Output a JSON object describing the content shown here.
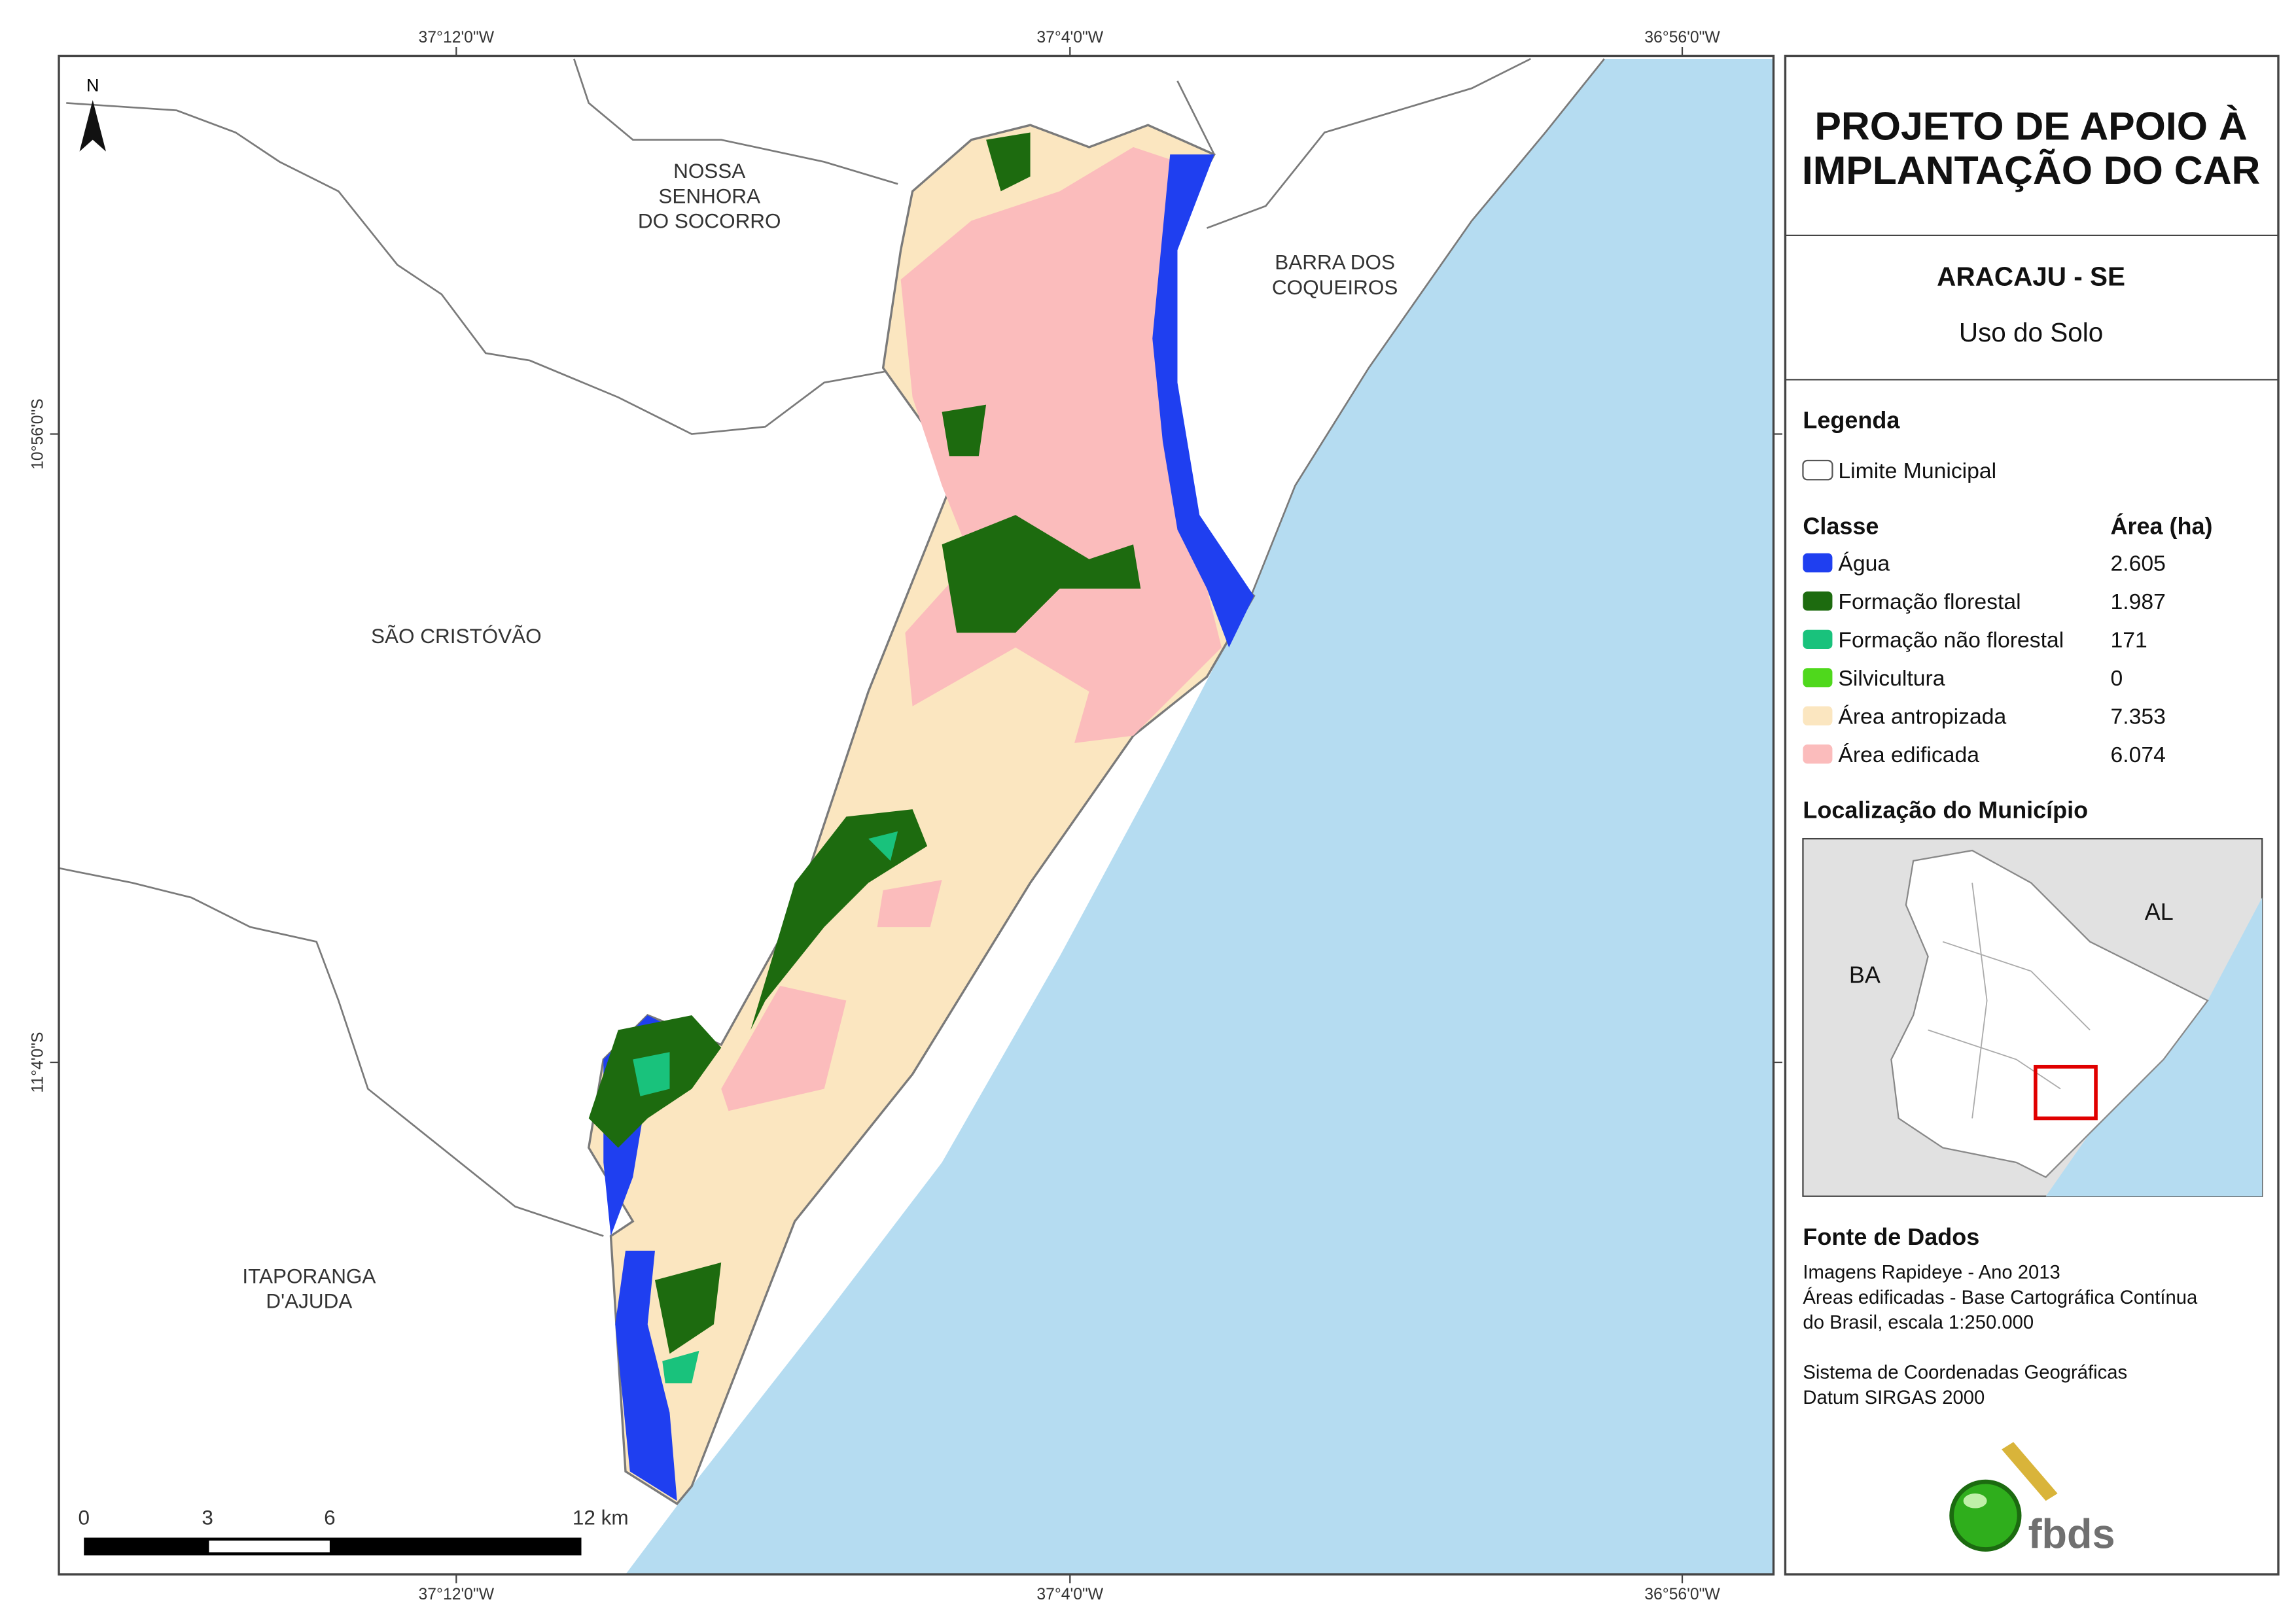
{
  "map": {
    "north": "N",
    "grid_labels": {
      "top": [
        "37°12'0\"W",
        "37°4'0\"W",
        "36°56'0\"W"
      ],
      "bottom": [
        "37°12'0\"W",
        "37°4'0\"W",
        "36°56'0\"W"
      ],
      "left": [
        "10°56'0\"S",
        "11°4'0\"S"
      ]
    },
    "places": {
      "nossa_senhora": [
        "NOSSA",
        "SENHORA",
        "DO SOCORRO"
      ],
      "barra": [
        "BARRA DOS",
        "COQUEIROS"
      ],
      "sao_cristovao": [
        "SÃO CRISTÓVÃO"
      ],
      "itaporanga": [
        "ITAPORANGA",
        "D'AJUDA"
      ]
    },
    "scale_bar": [
      "0",
      "3",
      "6",
      "12 km"
    ]
  },
  "panel": {
    "title": [
      "PROJETO DE APOIO À",
      "IMPLANTAÇÃO DO CAR"
    ],
    "municipality": "ARACAJU - SE",
    "subtitle": "Uso do Solo",
    "legend": {
      "heading": "Legenda",
      "boundary": "Limite Municipal",
      "class_header": "Classe",
      "area_header": "Área (ha)",
      "classes": [
        {
          "name": "Água",
          "color": "#1f3ff0",
          "area": "2.605"
        },
        {
          "name": "Formação florestal",
          "color": "#1d6b0f",
          "area": "1.987"
        },
        {
          "name": "Formação não florestal",
          "color": "#19c27c",
          "area": "171"
        },
        {
          "name": "Silvicultura",
          "color": "#4fd81c",
          "area": "0"
        },
        {
          "name": "Área antropizada",
          "color": "#fbe6c0",
          "area": "7.353"
        },
        {
          "name": "Área edificada",
          "color": "#fbbcbc",
          "area": "6.074"
        }
      ]
    },
    "locator": {
      "heading": "Localização do Município",
      "labels": [
        "AL",
        "BA"
      ]
    },
    "sources": {
      "heading": "Fonte de Dados",
      "lines": [
        "Imagens Rapideye - Ano 2013",
        "Áreas edificadas - Base Cartográfica Contínua",
        "do Brasil, escala 1:250.000",
        "Sistema de Coordenadas Geográficas",
        "Datum SIRGAS 2000"
      ]
    },
    "logo": "fbds"
  }
}
